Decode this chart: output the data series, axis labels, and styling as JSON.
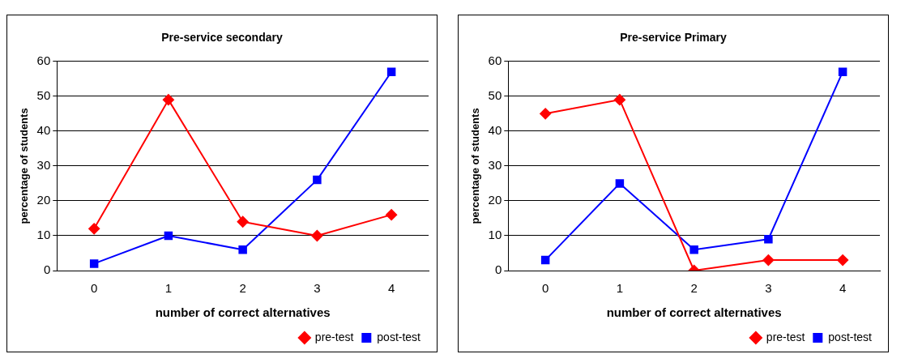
{
  "chart_data": [
    {
      "type": "line",
      "title": "Pre-service secondary",
      "xlabel": "number of correct alternatives",
      "ylabel": "percentage of students",
      "categories": [
        "0",
        "1",
        "2",
        "3",
        "4"
      ],
      "ylim": [
        0,
        60
      ],
      "yticks": [
        0,
        10,
        20,
        30,
        40,
        50,
        60
      ],
      "grid": "y",
      "legend": "bottom right",
      "series": [
        {
          "name": "pre-test",
          "color": "#ff0000",
          "marker": "diamond",
          "values": [
            12,
            49,
            14,
            10,
            16
          ]
        },
        {
          "name": "post-test",
          "color": "#0000ff",
          "marker": "square",
          "values": [
            2,
            10,
            6,
            26,
            57
          ]
        }
      ]
    },
    {
      "type": "line",
      "title": "Pre-service Primary",
      "xlabel": "number of correct alternatives",
      "ylabel": "percentage of students",
      "categories": [
        "0",
        "1",
        "2",
        "3",
        "4"
      ],
      "ylim": [
        0,
        60
      ],
      "yticks": [
        0,
        10,
        20,
        30,
        40,
        50,
        60
      ],
      "grid": "y",
      "legend": "bottom right",
      "series": [
        {
          "name": "pre-test",
          "color": "#ff0000",
          "marker": "diamond",
          "values": [
            45,
            49,
            0,
            3,
            3
          ]
        },
        {
          "name": "post-test",
          "color": "#0000ff",
          "marker": "square",
          "values": [
            3,
            25,
            6,
            9,
            57
          ]
        }
      ]
    }
  ]
}
